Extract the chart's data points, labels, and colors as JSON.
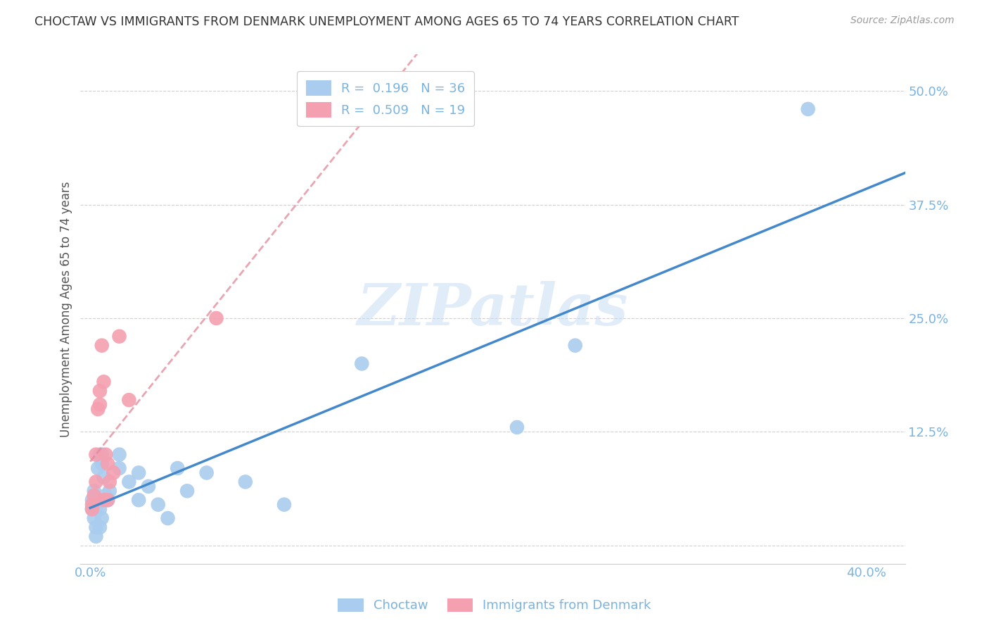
{
  "title": "CHOCTAW VS IMMIGRANTS FROM DENMARK UNEMPLOYMENT AMONG AGES 65 TO 74 YEARS CORRELATION CHART",
  "source": "Source: ZipAtlas.com",
  "ylabel": "Unemployment Among Ages 65 to 74 years",
  "xlim": [
    -0.005,
    0.42
  ],
  "ylim": [
    -0.02,
    0.54
  ],
  "xticks": [
    0.0,
    0.1,
    0.2,
    0.3,
    0.4
  ],
  "yticks": [
    0.0,
    0.125,
    0.25,
    0.375,
    0.5
  ],
  "axis_color": "#7ab3e0",
  "title_color": "#333333",
  "watermark_text": "ZIPatlas",
  "choctaw_color": "#aaccee",
  "denmark_color": "#f4a0b0",
  "choctaw_R": 0.196,
  "choctaw_N": 36,
  "denmark_R": 0.509,
  "denmark_N": 19,
  "choctaw_line_color": "#4488cc",
  "denmark_line_color": "#e08898",
  "choctaw_x": [
    0.001,
    0.001,
    0.002,
    0.002,
    0.003,
    0.003,
    0.003,
    0.004,
    0.004,
    0.005,
    0.005,
    0.005,
    0.006,
    0.006,
    0.006,
    0.007,
    0.008,
    0.009,
    0.01,
    0.015,
    0.015,
    0.02,
    0.025,
    0.025,
    0.03,
    0.035,
    0.04,
    0.045,
    0.05,
    0.06,
    0.08,
    0.1,
    0.14,
    0.22,
    0.25,
    0.37
  ],
  "choctaw_y": [
    0.04,
    0.05,
    0.03,
    0.06,
    0.02,
    0.04,
    0.01,
    0.05,
    0.085,
    0.02,
    0.04,
    0.1,
    0.03,
    0.09,
    0.1,
    0.075,
    0.055,
    0.05,
    0.06,
    0.085,
    0.1,
    0.07,
    0.05,
    0.08,
    0.065,
    0.045,
    0.03,
    0.085,
    0.06,
    0.08,
    0.07,
    0.045,
    0.2,
    0.13,
    0.22,
    0.48
  ],
  "denmark_x": [
    0.001,
    0.001,
    0.002,
    0.003,
    0.003,
    0.004,
    0.005,
    0.005,
    0.006,
    0.007,
    0.007,
    0.008,
    0.009,
    0.009,
    0.01,
    0.012,
    0.015,
    0.02,
    0.065
  ],
  "denmark_y": [
    0.04,
    0.045,
    0.055,
    0.07,
    0.1,
    0.15,
    0.155,
    0.17,
    0.22,
    0.18,
    0.05,
    0.1,
    0.09,
    0.05,
    0.07,
    0.08,
    0.23,
    0.16,
    0.25
  ]
}
